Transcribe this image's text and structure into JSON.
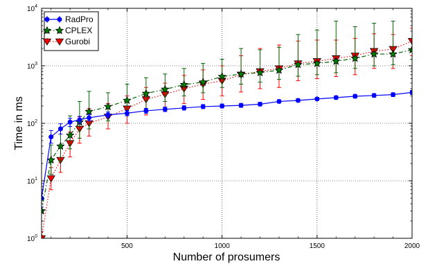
{
  "chart_data": {
    "type": "line",
    "xlabel": "Number of prosumers",
    "ylabel": "Time in ms",
    "xlim": [
      50,
      2000
    ],
    "ylim": [
      1,
      10000
    ],
    "yscale": "log",
    "grid": true,
    "legend_position": "top-left",
    "x_ticks": [
      500,
      1000,
      1500,
      2000
    ],
    "y_ticks": [
      {
        "value": 1,
        "label": "10",
        "exp": "0"
      },
      {
        "value": 10,
        "label": "10",
        "exp": "1"
      },
      {
        "value": 100,
        "label": "10",
        "exp": "2"
      },
      {
        "value": 1000,
        "label": "10",
        "exp": "3"
      },
      {
        "value": 10000,
        "label": "10",
        "exp": "4"
      }
    ],
    "series": [
      {
        "name": "RadPro",
        "color": "#0000ff",
        "line_style": "solid",
        "marker": "circle",
        "x": [
          50,
          100,
          150,
          200,
          250,
          300,
          400,
          500,
          600,
          700,
          800,
          900,
          1000,
          1100,
          1200,
          1300,
          1400,
          1500,
          1600,
          1700,
          1800,
          1900,
          2000
        ],
        "y": [
          5,
          58,
          80,
          105,
          115,
          125,
          140,
          150,
          165,
          175,
          185,
          195,
          200,
          205,
          215,
          240,
          250,
          265,
          280,
          295,
          305,
          315,
          345
        ],
        "err_low": [
          3.5,
          45,
          65,
          88,
          100,
          110,
          125,
          135,
          150,
          160,
          170,
          180,
          185,
          190,
          200,
          225,
          235,
          250,
          262,
          275,
          285,
          292,
          318
        ],
        "err_high": [
          7,
          75,
          98,
          122,
          132,
          142,
          157,
          167,
          182,
          192,
          202,
          212,
          217,
          222,
          232,
          257,
          267,
          282,
          300,
          318,
          328,
          340,
          372
        ]
      },
      {
        "name": "CPLEX",
        "color": "#006400",
        "line_style": "dashdot",
        "marker": "star",
        "x": [
          50,
          100,
          150,
          200,
          250,
          300,
          400,
          500,
          600,
          700,
          800,
          900,
          1000,
          1100,
          1200,
          1300,
          1400,
          1500,
          1600,
          1700,
          1800,
          1900,
          2000
        ],
        "y": [
          3,
          23,
          40,
          62,
          105,
          160,
          195,
          250,
          330,
          390,
          470,
          520,
          650,
          720,
          760,
          840,
          1050,
          1100,
          1200,
          1350,
          1600,
          1600,
          1900
        ],
        "err_low": [
          2,
          13,
          22,
          36,
          55,
          80,
          110,
          140,
          180,
          240,
          300,
          340,
          420,
          480,
          520,
          580,
          660,
          700,
          760,
          900,
          1000,
          1050,
          1300
        ],
        "err_high": [
          4.5,
          42,
          85,
          135,
          240,
          360,
          340,
          480,
          620,
          720,
          900,
          1100,
          1300,
          2000,
          1900,
          2100,
          3500,
          4200,
          6000,
          4800,
          5500,
          6000,
          3000
        ]
      },
      {
        "name": "Gurobi",
        "color": "#ff0000",
        "line_style": "dotted",
        "marker": "triangle-down",
        "x": [
          50,
          100,
          150,
          200,
          250,
          300,
          400,
          500,
          600,
          700,
          800,
          900,
          1000,
          1100,
          1200,
          1300,
          1400,
          1500,
          1600,
          1700,
          1800,
          1900,
          2000
        ],
        "y": [
          1,
          11,
          23,
          45,
          80,
          100,
          130,
          180,
          260,
          320,
          400,
          480,
          550,
          700,
          800,
          900,
          1100,
          1200,
          1350,
          1500,
          1800,
          1950,
          2700
        ],
        "err_low": [
          1,
          7,
          14,
          26,
          45,
          60,
          80,
          100,
          140,
          180,
          220,
          260,
          300,
          350,
          400,
          420,
          550,
          600,
          650,
          700,
          900,
          900,
          1500
        ],
        "err_high": [
          1.3,
          17,
          38,
          70,
          130,
          180,
          220,
          300,
          420,
          500,
          680,
          850,
          1000,
          1500,
          2000,
          2300,
          2700,
          2800,
          2800,
          3000,
          3600,
          3500,
          4500
        ]
      }
    ]
  }
}
